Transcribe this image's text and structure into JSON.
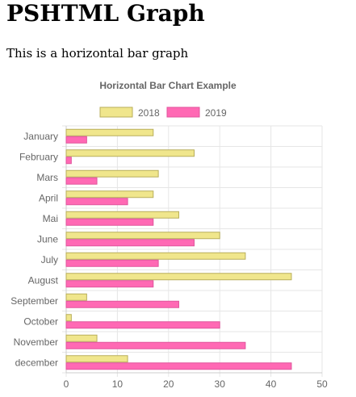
{
  "page": {
    "heading": "PSHTML Graph",
    "description": "This is a horizontal bar graph"
  },
  "chart_data": {
    "type": "bar",
    "orientation": "horizontal",
    "title": "Horizontal Bar Chart Example",
    "categories": [
      "January",
      "February",
      "Mars",
      "April",
      "Mai",
      "June",
      "July",
      "August",
      "September",
      "October",
      "November",
      "december"
    ],
    "series": [
      {
        "name": "2018",
        "color": "#f0e68c",
        "border": "#b8ae5a",
        "values": [
          17,
          25,
          18,
          17,
          22,
          30,
          35,
          44,
          4,
          1,
          6,
          12
        ]
      },
      {
        "name": "2019",
        "color": "#ff69b4",
        "border": "#e0559c",
        "values": [
          4,
          1,
          6,
          12,
          17,
          25,
          18,
          17,
          22,
          30,
          35,
          44
        ]
      }
    ],
    "xlim": [
      0,
      50
    ],
    "x_ticks": [
      0,
      10,
      20,
      30,
      40,
      50
    ],
    "grid": true,
    "legend_position": "top"
  }
}
